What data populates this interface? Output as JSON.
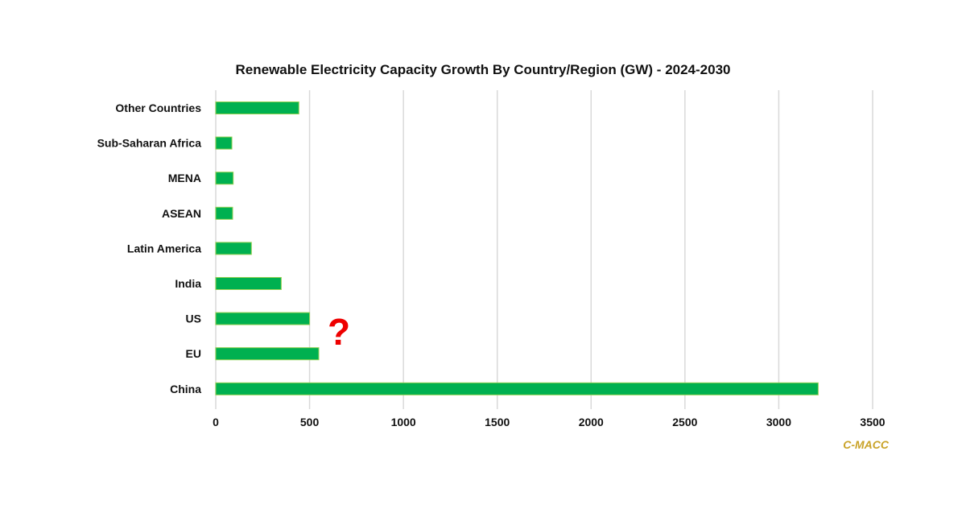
{
  "chart_data": {
    "type": "bar",
    "orientation": "horizontal",
    "title": "Renewable Electricity Capacity Growth By Country/Region (GW) - 2024-2030",
    "categories": [
      "Other Countries",
      "Sub-Saharan Africa",
      "MENA",
      "ASEAN",
      "Latin America",
      "India",
      "US",
      "EU",
      "China"
    ],
    "values": [
      443,
      86,
      93,
      90,
      190,
      349,
      500,
      549,
      3210
    ],
    "xlabel": "",
    "ylabel": "",
    "xlim": [
      0,
      3500
    ],
    "xticks": [
      "0",
      "500",
      "1000",
      "1500",
      "2000",
      "2500",
      "3000",
      "3500"
    ],
    "grid": true,
    "bar_color": "#00b050",
    "bar_border_color": "#92d050",
    "annotation": "?",
    "annotation_color": "#ee0000",
    "source": "C-MACC",
    "source_color": "#c9a227"
  }
}
